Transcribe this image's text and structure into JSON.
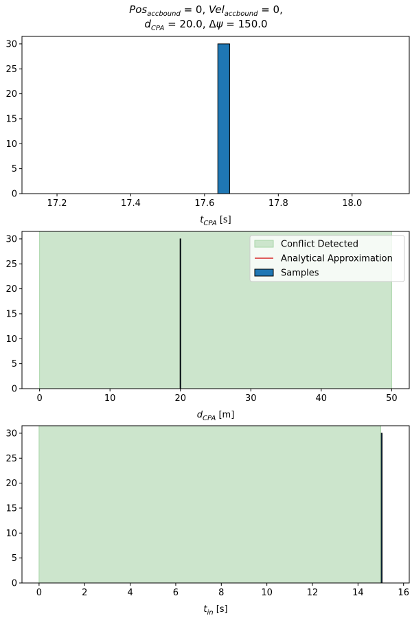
{
  "figure": {
    "title_line1": "Pos_accbound = 0, Vel_accbound = 0,",
    "title_line2": "d_CPA = 20.0, Δψ = 150.0"
  },
  "colors": {
    "bar_fill": "#1f77b4",
    "bar_edge": "#000000",
    "conflict_fill": "#cce5cc",
    "conflict_edge": "#a8d5a8",
    "analytical_line": "#d62728",
    "axes": "#000000"
  },
  "chart_data": [
    {
      "type": "bar",
      "xlabel": "t_CPA [s]",
      "ylabel": "",
      "xlim": [
        17.105,
        18.155
      ],
      "ylim": [
        0,
        31.5
      ],
      "xticks": [
        17.2,
        17.4,
        17.6,
        17.8,
        18.0
      ],
      "xtick_labels": [
        "17.2",
        "17.4",
        "17.6",
        "17.8",
        "18.0"
      ],
      "yticks": [
        0,
        5,
        10,
        15,
        20,
        25,
        30
      ],
      "ytick_labels": [
        "0",
        "5",
        "10",
        "15",
        "20",
        "25",
        "30"
      ],
      "bars": [
        {
          "x0": 17.636,
          "x1": 17.668,
          "value": 30
        }
      ],
      "analytical_line": {
        "x": [
          17.14,
          18.12
        ],
        "y": [
          0,
          0
        ]
      },
      "conflict_region": null,
      "legend": null
    },
    {
      "type": "bar",
      "xlabel": "d_CPA [m]",
      "ylabel": "",
      "xlim": [
        -2.5,
        52.5
      ],
      "ylim": [
        0,
        31.5
      ],
      "xticks": [
        0,
        10,
        20,
        30,
        40,
        50
      ],
      "xtick_labels": [
        "0",
        "10",
        "20",
        "30",
        "40",
        "50"
      ],
      "yticks": [
        0,
        5,
        10,
        15,
        20,
        25,
        30
      ],
      "ytick_labels": [
        "0",
        "5",
        "10",
        "15",
        "20",
        "25",
        "30"
      ],
      "bars": [
        {
          "x0": 19.95,
          "x1": 20.05,
          "value": 30
        }
      ],
      "analytical_line": {
        "x": [
          0,
          50
        ],
        "y": [
          0,
          0
        ]
      },
      "conflict_region": {
        "x0": 0,
        "x1": 50
      },
      "legend": {
        "position": "upper right",
        "entries": [
          "Conflict Detected",
          "Analytical Approximation",
          "Samples"
        ]
      }
    },
    {
      "type": "bar",
      "xlabel": "t_in [s]",
      "ylabel": "",
      "xlim": [
        -0.75,
        16.25
      ],
      "ylim": [
        0,
        31.5
      ],
      "xticks": [
        0,
        2,
        4,
        6,
        8,
        10,
        12,
        14,
        16
      ],
      "xtick_labels": [
        "0",
        "2",
        "4",
        "6",
        "8",
        "10",
        "12",
        "14",
        "16"
      ],
      "yticks": [
        0,
        5,
        10,
        15,
        20,
        25,
        30
      ],
      "ytick_labels": [
        "0",
        "5",
        "10",
        "15",
        "20",
        "25",
        "30"
      ],
      "bars": [
        {
          "x0": 15.02,
          "x1": 15.06,
          "value": 30
        }
      ],
      "analytical_line": {
        "x": [
          14.6,
          15.5
        ],
        "y": [
          0,
          0
        ]
      },
      "conflict_region": {
        "x0": 0,
        "x1": 15.0
      },
      "legend": null
    }
  ]
}
